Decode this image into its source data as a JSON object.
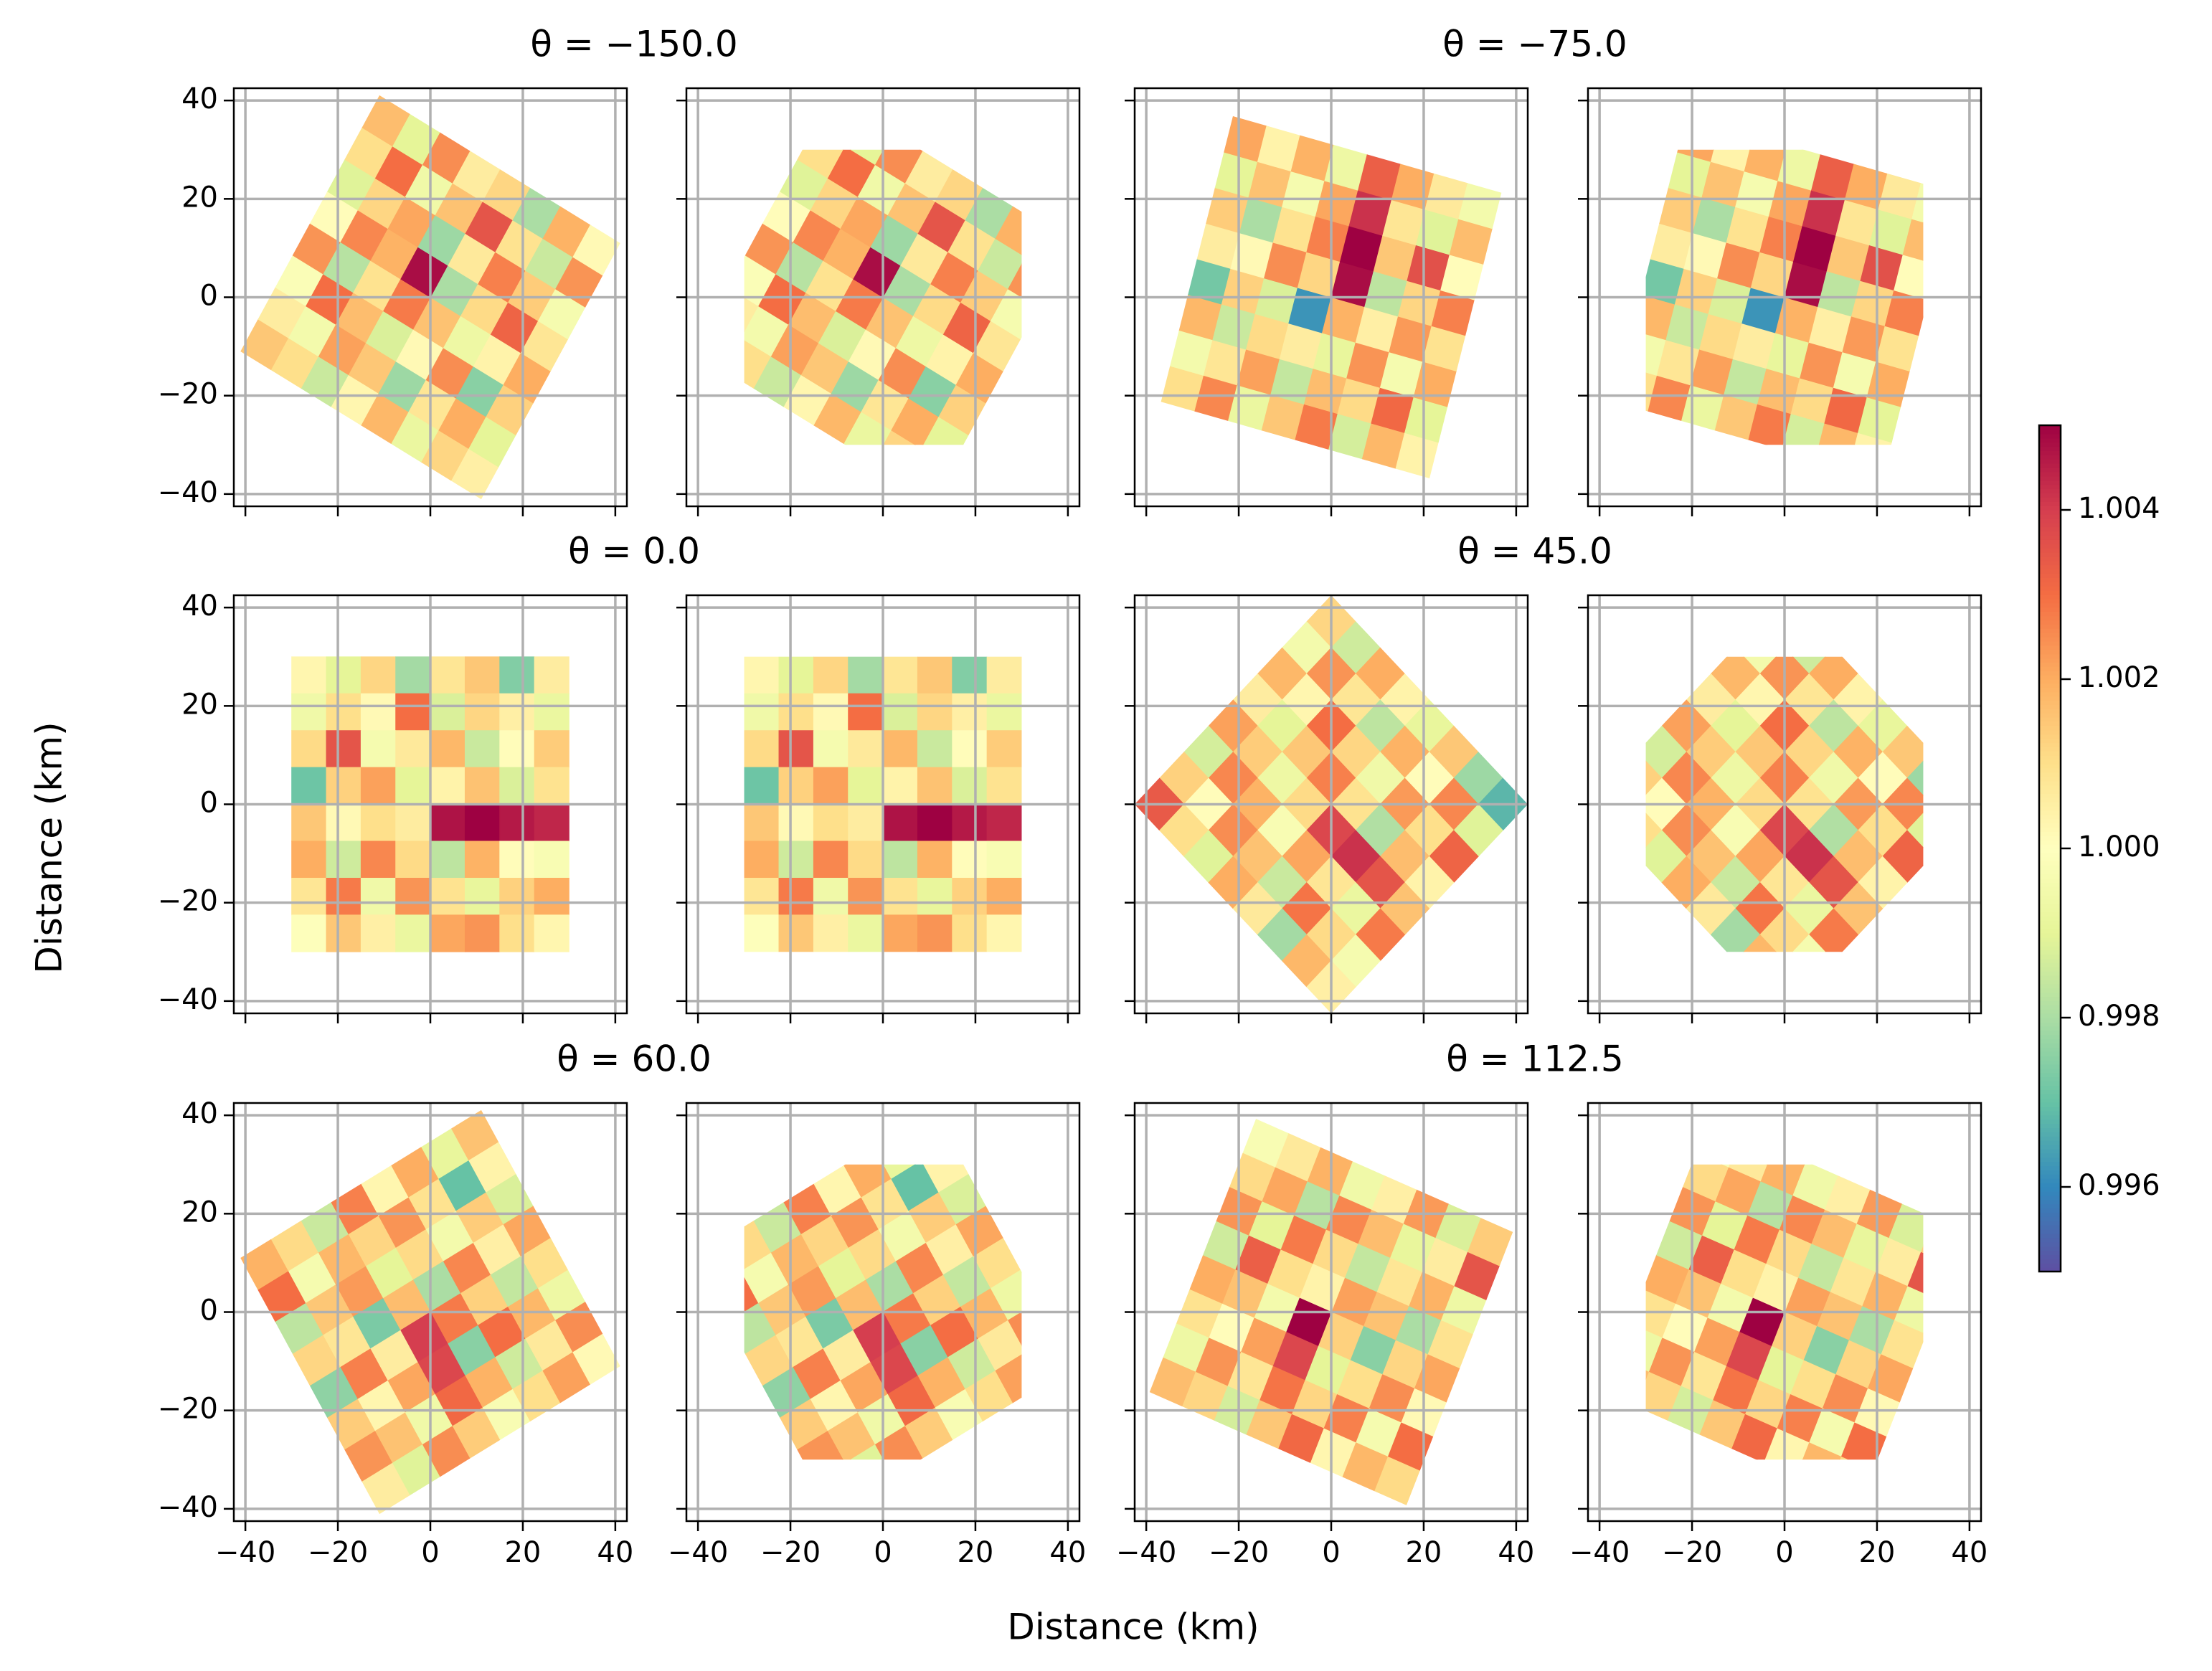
{
  "chart_data": {
    "type": "rotated-heatmap",
    "x_label": "Distance (km)",
    "y_label": "Distance (km)",
    "xlim": [
      -42.5,
      42.5
    ],
    "ylim": [
      -42.5,
      42.5
    ],
    "xticks": [
      {
        "value": -40,
        "label": "−40"
      },
      {
        "value": -20,
        "label": "−20"
      },
      0,
      20,
      40
    ],
    "yticks": [
      {
        "value": -40,
        "label": "−40"
      },
      {
        "value": -20,
        "label": "−20"
      },
      0,
      20,
      40
    ],
    "grid": true,
    "colormap": "Spectral_r",
    "extent": [
      -30,
      30
    ],
    "clim": [
      0.995,
      1.005
    ],
    "cticks": [
      0.996,
      0.998,
      {
        "value": 1,
        "label": "1.000"
      },
      1.002,
      1.004
    ],
    "panels": [
      {
        "title": "θ = −150.0",
        "rotation": -150,
        "z": [
          [
            1.0005,
            1.0012,
            0.9992,
            1.0018,
            1.0003,
            0.9985,
            1.001,
            1.0015
          ],
          [
            0.999,
            1.002,
            1.0008,
            0.9978,
            1.0015,
            1.0022,
            0.9995,
            1.0006
          ],
          [
            1.0013,
            0.9975,
            1.0025,
            1.0002,
            0.9988,
            1.0017,
            1.003,
            0.9998
          ],
          [
            1.002,
            1.0004,
            0.9993,
            1.0016,
            1.0028,
            1.0009,
            0.9982,
            1.0024
          ],
          [
            1.0008,
            1.0032,
            1.0011,
            0.998,
            1.0048,
            1.0019,
            1.0026,
            1.0001
          ],
          [
            0.9996,
            1.0014,
            1.0027,
            1.0007,
            0.9978,
            1.0021,
            1.0012,
            0.9989
          ],
          [
            1.0024,
            0.9985,
            1.0009,
            1.0035,
            1.0016,
            0.9994,
            1.003,
            1.001
          ],
          [
            1.0002,
            1.0019,
            0.998,
            1.0012,
            1.0006,
            1.0025,
            0.999,
            1.0017
          ]
        ]
      },
      {
        "title": "θ = −75.0",
        "rotation": -75,
        "z": [
          [
            1.001,
            0.9995,
            1.0018,
            0.9972,
            1.0006,
            1.0014,
            0.999,
            1.0021
          ],
          [
            1.0026,
            1.0008,
            0.9985,
            1.0013,
            1.0002,
            0.998,
            1.0016,
            1.0004
          ],
          [
            0.9992,
            1.0022,
            1.0011,
            0.9988,
            1.0025,
            1.0009,
            0.9996,
            1.0019
          ],
          [
            1.0015,
            0.9984,
            1.0006,
            0.9962,
            1.0012,
            1.0027,
            1.0021,
            0.9993
          ],
          [
            1.0028,
            1.0017,
            0.9991,
            1.0019,
            1.0048,
            1.005,
            1.0042,
            1.0033
          ],
          [
            0.9987,
            1.0011,
            1.0024,
            1.0005,
            0.9983,
            1.0015,
            1.0008,
            1.002
          ],
          [
            1.0018,
            1.0031,
            0.9996,
            1.0023,
            1.0012,
            1.0036,
            0.9989,
            1.0007
          ],
          [
            1.0004,
            0.999,
            1.002,
            1.0009,
            1.0027,
            1.0001,
            1.0017,
            0.9995
          ]
        ]
      },
      {
        "title": "θ = 0.0",
        "rotation": 0,
        "z": [
          [
            1.0003,
            0.999,
            1.0012,
            0.9979,
            1.0008,
            1.0015,
            0.9974,
            1.0006
          ],
          [
            0.9994,
            1.001,
            1.0002,
            1.003,
            0.9988,
            1.0012,
            1.0005,
            0.9992
          ],
          [
            1.0011,
            1.0035,
            0.9996,
            1.0007,
            1.0018,
            0.9985,
            1.0001,
            1.0014
          ],
          [
            0.9971,
            1.0013,
            1.0022,
            0.999,
            1.0004,
            1.0016,
            0.9988,
            1.0009
          ],
          [
            1.0015,
            1.0002,
            1.001,
            1.0006,
            1.0047,
            1.005,
            1.0046,
            1.0044
          ],
          [
            1.002,
            0.9986,
            1.0026,
            1.0011,
            0.9983,
            1.0019,
            1.0001,
            0.9997
          ],
          [
            1.0008,
            1.0028,
            0.9994,
            1.0024,
            1.0009,
            0.9991,
            1.0013,
            1.002
          ],
          [
            0.9999,
            1.0015,
            1.0005,
            0.9992,
            1.0021,
            1.0024,
            1.001,
            1.0003
          ]
        ]
      },
      {
        "title": "θ = 45.0",
        "rotation": 45,
        "z": [
          [
            1.0012,
            0.9986,
            1.002,
            1.0004,
            0.9991,
            1.0015,
            0.9978,
            0.9968
          ],
          [
            0.9995,
            1.0024,
            1.0008,
            0.9983,
            1.0019,
            1.0001,
            1.0026,
            0.9989
          ],
          [
            1.0018,
            1.0003,
            1.003,
            1.0012,
            0.9994,
            1.0023,
            1.001,
            1.0032
          ],
          [
            1.0006,
            0.999,
            1.0015,
            1.0027,
            1.0009,
            0.9981,
            1.0017,
            1.0004
          ],
          [
            1.0022,
            1.0014,
            0.9993,
            1.0011,
            1.0038,
            1.0042,
            1.0035,
            1.0016
          ],
          [
            0.9987,
            1.0026,
            1.0019,
            0.9997,
            1.0021,
            1.0008,
            0.9992,
            1.0028
          ],
          [
            1.0013,
            1.0001,
            1.0025,
            1.0016,
            0.9985,
            1.0029,
            1.0011,
            0.9996
          ],
          [
            1.0034,
            1.001,
            0.9989,
            1.002,
            1.0007,
            0.9979,
            1.0018,
            1.0005
          ]
        ]
      },
      {
        "title": "θ = 60.0",
        "rotation": 60,
        "z": [
          [
            1.0016,
            1.0004,
            0.9988,
            1.0021,
            1.001,
            0.9993,
            1.0025,
            1.0002
          ],
          [
            0.9991,
            0.997,
            1.0014,
            1.0005,
            0.9984,
            1.0018,
            1.0007,
            1.0022
          ],
          [
            1.002,
            1.0009,
            0.9995,
            1.0026,
            1.0013,
            1.003,
            0.9986,
            1.001
          ],
          [
            1.0003,
            1.0024,
            1.0011,
            0.998,
            1.0028,
            0.9975,
            1.0019,
            0.9997
          ],
          [
            1.0027,
            1.0012,
            0.999,
            1.0017,
            1.004,
            1.0038,
            1.0031,
            1.0014
          ],
          [
            0.9985,
            1.0018,
            1.0023,
            0.9973,
            1.0006,
            1.0021,
            0.9994,
            1.0025
          ],
          [
            1.0011,
            0.9996,
            1.0015,
            1.0008,
            1.0027,
            1.0003,
            1.0016,
            0.9989
          ],
          [
            1.0019,
            1.003,
            0.9983,
            1.0012,
            0.9976,
            1.0014,
            1.0024,
            1.0006
          ]
        ]
      },
      {
        "title": "θ = 112.5",
        "rotation": 112.5,
        "z": [
          [
            1.0014,
            1.0035,
            0.9993,
            1.0009,
            1.0021,
            1.0002,
            1.003,
            1.0011
          ],
          [
            0.9988,
            1.0006,
            1.0019,
            0.998,
            1.0012,
            1.0025,
            0.9996,
            1.0018
          ],
          [
            1.0023,
            0.9991,
            1.0008,
            1.0016,
            0.9975,
            1.001,
            1.0027,
            1.0003
          ],
          [
            1.0005,
            1.0017,
            0.9984,
            1.0022,
            1.0013,
            0.999,
            1.0012,
            1.0031
          ],
          [
            0.9994,
            1.0026,
            1.0011,
            1.0004,
            1.005,
            1.0038,
            1.0029,
            1.0015
          ],
          [
            1.0019,
            0.9982,
            1.0028,
            1.001,
            0.9995,
            1.0022,
            1.0008,
            0.9987
          ],
          [
            1.0007,
            1.0021,
            0.999,
            1.0033,
            1.0016,
            1.0001,
            1.0024,
            1.0012
          ],
          [
            0.9997,
            1.0011,
            1.0024,
            0.9986,
            1.002,
            1.0009,
            0.9993,
            1.0017
          ]
        ]
      }
    ]
  }
}
